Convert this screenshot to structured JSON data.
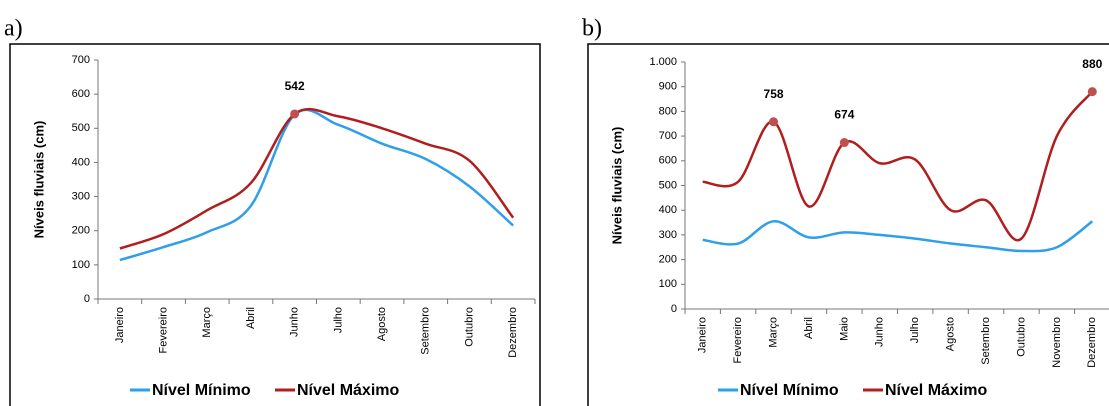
{
  "chart_data": [
    {
      "type": "line",
      "panel_label": "a)",
      "y_label": "Níveis fluviais (cm)",
      "categories": [
        "Janeiro",
        "Fevereiro",
        "Março",
        "Abril",
        "Junho",
        "Julho",
        "Agosto",
        "Setembro",
        "Outubro",
        "Dezembro"
      ],
      "series": [
        {
          "name": "Nível Mínimo",
          "color": "#2e9fe8",
          "values": [
            114,
            152,
            196,
            273,
            540,
            510,
            455,
            410,
            330,
            215
          ]
        },
        {
          "name": "Nível Máximo",
          "color": "#b01e1e",
          "values": [
            148,
            190,
            260,
            340,
            542,
            535,
            500,
            455,
            405,
            238
          ],
          "highlight": [
            4
          ]
        }
      ],
      "ylim": [
        0,
        700
      ],
      "yticks": [
        0,
        100,
        200,
        300,
        400,
        500,
        600,
        700
      ],
      "grid": false
    },
    {
      "type": "line",
      "panel_label": "b)",
      "y_label": "Níveis fluviais (cm)",
      "categories": [
        "Janeiro",
        "Fevereiro",
        "Março",
        "Abril",
        "Maio",
        "Junho",
        "Julho",
        "Agosto",
        "Setembro",
        "Outubro",
        "Novembro",
        "Dezembro"
      ],
      "series": [
        {
          "name": "Nível Mínimo",
          "color": "#2e9fe8",
          "values": [
            280,
            265,
            355,
            290,
            310,
            300,
            285,
            265,
            250,
            235,
            250,
            355
          ]
        },
        {
          "name": "Nível Máximo",
          "color": "#b01e1e",
          "values": [
            515,
            515,
            758,
            415,
            674,
            590,
            605,
            400,
            440,
            285,
            700,
            880
          ],
          "highlight": [
            2,
            4,
            11
          ]
        }
      ],
      "ylim": [
        0,
        1000
      ],
      "yticks": [
        0,
        100,
        200,
        300,
        400,
        500,
        600,
        700,
        800,
        900,
        {
          "value": 1000,
          "label": "1.000"
        }
      ],
      "grid": false
    }
  ]
}
